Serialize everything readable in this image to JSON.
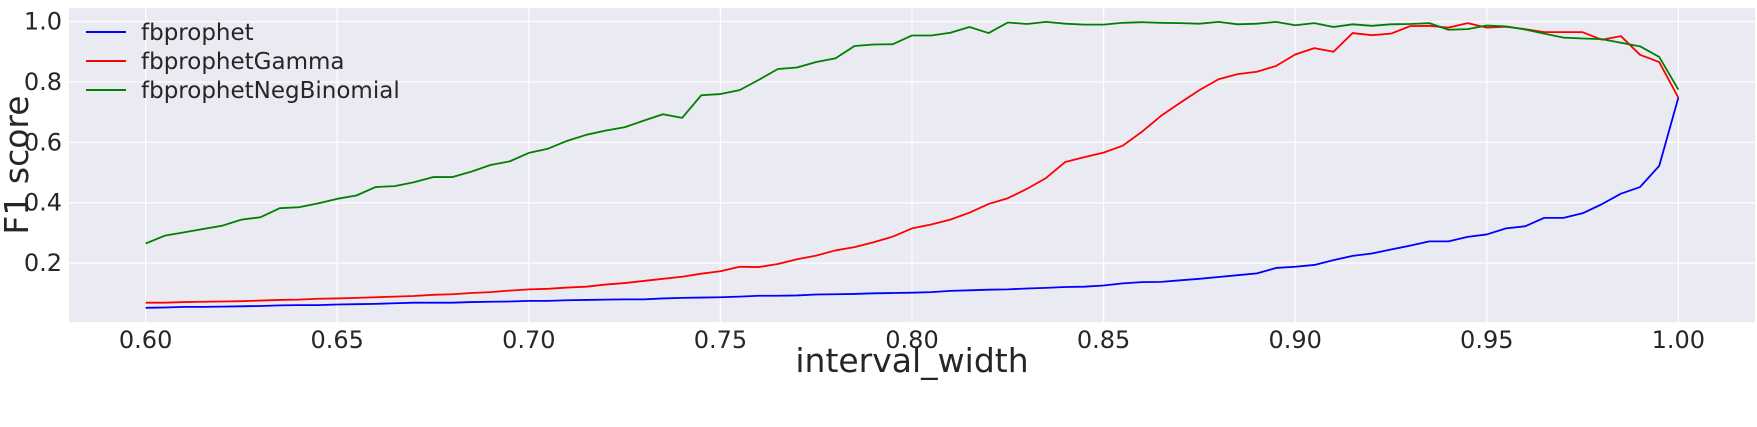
{
  "chart_data": {
    "type": "line",
    "xlabel": "interval_width",
    "ylabel": "F1 score",
    "xlim": [
      0.58,
      1.02
    ],
    "ylim": [
      0.005,
      1.045
    ],
    "x_ticks": [
      "0.60",
      "0.65",
      "0.70",
      "0.75",
      "0.80",
      "0.85",
      "0.90",
      "0.95",
      "1.00"
    ],
    "y_ticks": [
      "0.2",
      "0.4",
      "0.6",
      "0.8",
      "1.0"
    ],
    "grid": true,
    "legend_position": "top-left",
    "x": [
      0.6,
      0.605,
      0.61,
      0.615,
      0.62,
      0.625,
      0.63,
      0.635,
      0.64,
      0.645,
      0.65,
      0.655,
      0.66,
      0.665,
      0.67,
      0.675,
      0.68,
      0.685,
      0.69,
      0.695,
      0.7,
      0.705,
      0.71,
      0.715,
      0.72,
      0.725,
      0.73,
      0.735,
      0.74,
      0.745,
      0.75,
      0.755,
      0.76,
      0.765,
      0.77,
      0.775,
      0.78,
      0.785,
      0.79,
      0.795,
      0.8,
      0.805,
      0.81,
      0.815,
      0.82,
      0.825,
      0.83,
      0.835,
      0.84,
      0.845,
      0.85,
      0.855,
      0.86,
      0.865,
      0.87,
      0.875,
      0.88,
      0.885,
      0.89,
      0.895,
      0.9,
      0.905,
      0.91,
      0.915,
      0.92,
      0.925,
      0.93,
      0.935,
      0.94,
      0.945,
      0.95,
      0.955,
      0.96,
      0.965,
      0.97,
      0.975,
      0.98,
      0.985,
      0.99,
      0.995,
      1.0
    ],
    "series": [
      {
        "name": "fbprophet",
        "color": "#0000ff",
        "values": [
          0.052,
          0.053,
          0.055,
          0.055,
          0.056,
          0.057,
          0.058,
          0.06,
          0.061,
          0.061,
          0.063,
          0.064,
          0.065,
          0.067,
          0.069,
          0.069,
          0.069,
          0.071,
          0.072,
          0.073,
          0.075,
          0.075,
          0.077,
          0.078,
          0.079,
          0.08,
          0.08,
          0.083,
          0.085,
          0.086,
          0.087,
          0.089,
          0.092,
          0.092,
          0.093,
          0.096,
          0.097,
          0.098,
          0.1,
          0.101,
          0.102,
          0.104,
          0.108,
          0.11,
          0.112,
          0.113,
          0.116,
          0.118,
          0.121,
          0.122,
          0.126,
          0.133,
          0.137,
          0.138,
          0.143,
          0.148,
          0.154,
          0.16,
          0.166,
          0.184,
          0.188,
          0.194,
          0.21,
          0.224,
          0.232,
          0.245,
          0.258,
          0.272,
          0.272,
          0.287,
          0.295,
          0.315,
          0.322,
          0.35,
          0.35,
          0.365,
          0.395,
          0.43,
          0.452,
          0.522,
          0.748
        ]
      },
      {
        "name": "fbprophetGamma",
        "color": "#ff0000",
        "values": [
          0.069,
          0.069,
          0.071,
          0.072,
          0.073,
          0.074,
          0.076,
          0.078,
          0.079,
          0.082,
          0.083,
          0.085,
          0.087,
          0.089,
          0.091,
          0.095,
          0.097,
          0.101,
          0.104,
          0.109,
          0.113,
          0.115,
          0.119,
          0.122,
          0.129,
          0.134,
          0.141,
          0.148,
          0.155,
          0.165,
          0.173,
          0.188,
          0.187,
          0.197,
          0.213,
          0.225,
          0.242,
          0.253,
          0.269,
          0.288,
          0.315,
          0.328,
          0.344,
          0.367,
          0.396,
          0.415,
          0.446,
          0.482,
          0.535,
          0.551,
          0.566,
          0.589,
          0.635,
          0.688,
          0.731,
          0.773,
          0.809,
          0.826,
          0.834,
          0.853,
          0.891,
          0.912,
          0.9,
          0.962,
          0.955,
          0.96,
          0.985,
          0.986,
          0.98,
          0.995,
          0.98,
          0.983,
          0.975,
          0.965,
          0.965,
          0.965,
          0.94,
          0.952,
          0.89,
          0.866,
          0.748
        ]
      },
      {
        "name": "fbprophetNegBinomial",
        "color": "#008000",
        "values": [
          0.265,
          0.291,
          0.302,
          0.313,
          0.324,
          0.344,
          0.352,
          0.382,
          0.385,
          0.398,
          0.413,
          0.424,
          0.452,
          0.455,
          0.468,
          0.485,
          0.485,
          0.503,
          0.525,
          0.537,
          0.565,
          0.579,
          0.605,
          0.625,
          0.639,
          0.65,
          0.672,
          0.693,
          0.681,
          0.756,
          0.76,
          0.773,
          0.807,
          0.843,
          0.848,
          0.866,
          0.878,
          0.919,
          0.924,
          0.925,
          0.954,
          0.954,
          0.963,
          0.982,
          0.962,
          0.997,
          0.992,
          0.999,
          0.993,
          0.99,
          0.99,
          0.996,
          0.998,
          0.996,
          0.995,
          0.993,
          0.999,
          0.991,
          0.993,
          0.999,
          0.988,
          0.995,
          0.982,
          0.991,
          0.986,
          0.991,
          0.992,
          0.995,
          0.973,
          0.975,
          0.987,
          0.984,
          0.974,
          0.96,
          0.947,
          0.944,
          0.942,
          0.93,
          0.918,
          0.883,
          0.775
        ]
      }
    ]
  }
}
